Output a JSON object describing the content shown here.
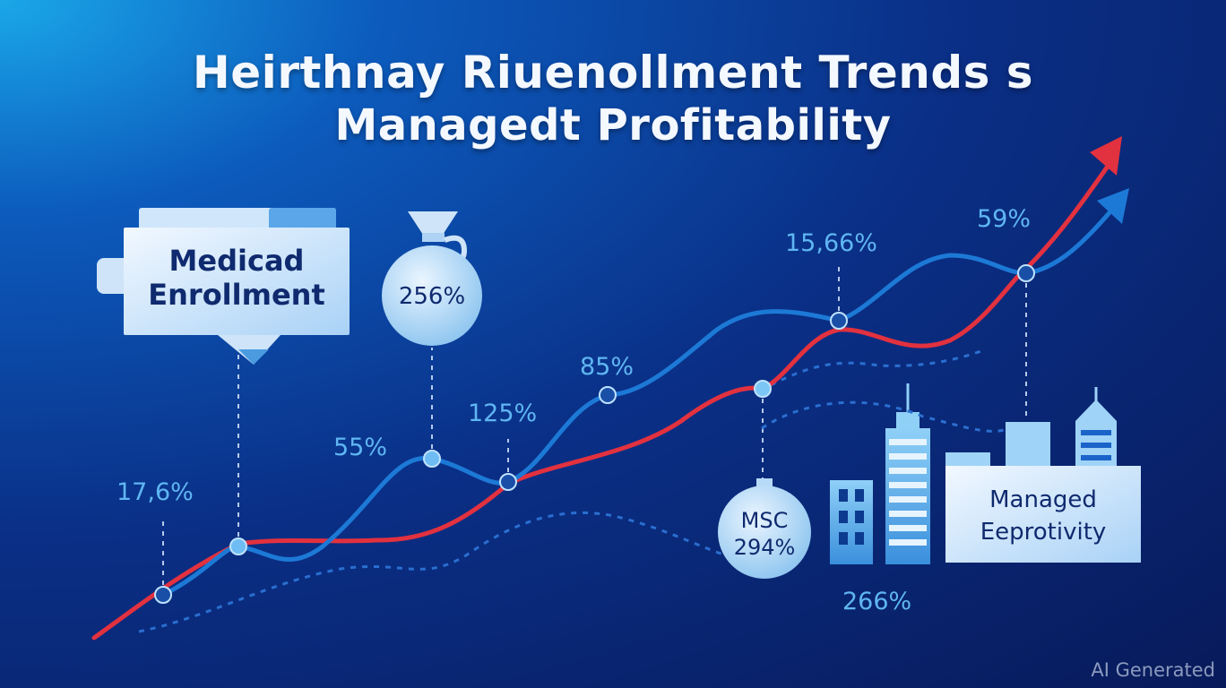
{
  "chart_data": {
    "type": "line",
    "title_line1": "Heirthnay Riuenollment Trends s",
    "title_line2": "Managedt Profitability",
    "data_labels": [
      "17,6%",
      "55%",
      "125%",
      "85%",
      "15,66%",
      "59%",
      "266%"
    ],
    "series": [
      {
        "color": "#1d79d6",
        "points": []
      },
      {
        "color": "#e2313f",
        "points": []
      },
      {
        "color": "#2a6fd0",
        "dashed": true,
        "points": []
      }
    ]
  },
  "cards": {
    "enrollment_line1": "Medicad",
    "enrollment_line2": "Enrollment",
    "bag_value": "256%",
    "msc_line1": "MSC",
    "msc_line2": "294%",
    "managed_line1": "Managed",
    "managed_line2": "Eeprotivity"
  },
  "watermark": "AI Generated"
}
